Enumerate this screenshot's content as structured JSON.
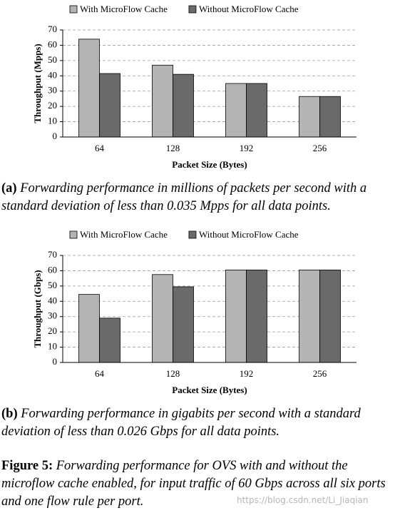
{
  "chart_data": [
    {
      "type": "bar",
      "caption": {
        "label": "(a)",
        "text": "Forwarding performance in millions of packets per second with a standard deviation of less than 0.035 Mpps for all data points."
      },
      "x_label": "Packet Size (Bytes)",
      "y_label": "Throughput (Mpps)",
      "categories": [
        "64",
        "128",
        "192",
        "256"
      ],
      "series": [
        {
          "name": "With MicroFlow Cache",
          "color": "#b4b4b4",
          "values": [
            64,
            47,
            35,
            26.5
          ]
        },
        {
          "name": "Without MicroFlow Cache",
          "color": "#6a6a6a",
          "values": [
            41.5,
            41,
            35,
            26.5
          ]
        }
      ],
      "ylim": [
        0,
        70
      ],
      "yticks": [
        0,
        10,
        20,
        30,
        40,
        50,
        60,
        70
      ],
      "grid": true,
      "legend": "top"
    },
    {
      "type": "bar",
      "caption": {
        "label": "(b)",
        "text": "Forwarding performance in gigabits per second with a standard deviation of less than 0.026 Gbps for all data points."
      },
      "x_label": "Packet Size (Bytes)",
      "y_label": "Throughput (Gbps)",
      "categories": [
        "64",
        "128",
        "192",
        "256"
      ],
      "series": [
        {
          "name": "With MicroFlow Cache",
          "color": "#b4b4b4",
          "values": [
            44.5,
            57.5,
            60.5,
            60.5
          ]
        },
        {
          "name": "Without MicroFlow Cache",
          "color": "#6a6a6a",
          "values": [
            29,
            49.5,
            60.5,
            60.5
          ]
        }
      ],
      "ylim": [
        0,
        70
      ],
      "yticks": [
        0,
        10,
        20,
        30,
        40,
        50,
        60,
        70
      ],
      "grid": true,
      "legend": "top"
    }
  ],
  "figure_caption": {
    "label": "Figure 5:",
    "text": "Forwarding performance for OVS with and without the microflow cache enabled, for input traffic of 60 Gbps across all six ports and one flow rule per port."
  },
  "watermark": "https://blog.csdn.net/Li_Jiaqian"
}
